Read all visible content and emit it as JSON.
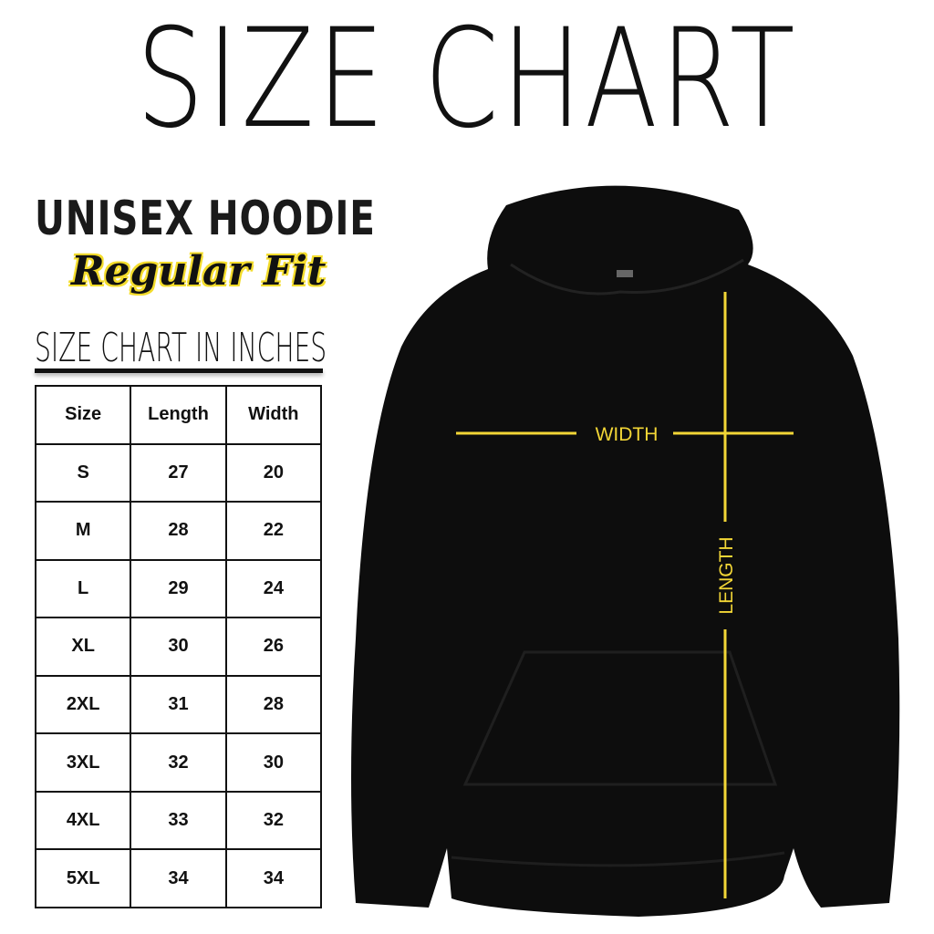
{
  "title": "SIZE CHART",
  "product": "UNISEX HOODIE",
  "fit": "Regular Fit",
  "subtitle": "SIZE CHART IN INCHES",
  "table": {
    "headers": [
      "Size",
      "Length",
      "Width"
    ],
    "rows": [
      [
        "S",
        "27",
        "20"
      ],
      [
        "M",
        "28",
        "22"
      ],
      [
        "L",
        "29",
        "24"
      ],
      [
        "XL",
        "30",
        "26"
      ],
      [
        "2XL",
        "31",
        "28"
      ],
      [
        "3XL",
        "32",
        "30"
      ],
      [
        "4XL",
        "33",
        "32"
      ],
      [
        "5XL",
        "34",
        "34"
      ]
    ]
  },
  "measure": {
    "width_label": "WIDTH",
    "length_label": "LENGTH",
    "line_color": "#f2d636"
  },
  "colors": {
    "hoodie": "#0d0d0d",
    "highlight": "#f3dc2c"
  }
}
